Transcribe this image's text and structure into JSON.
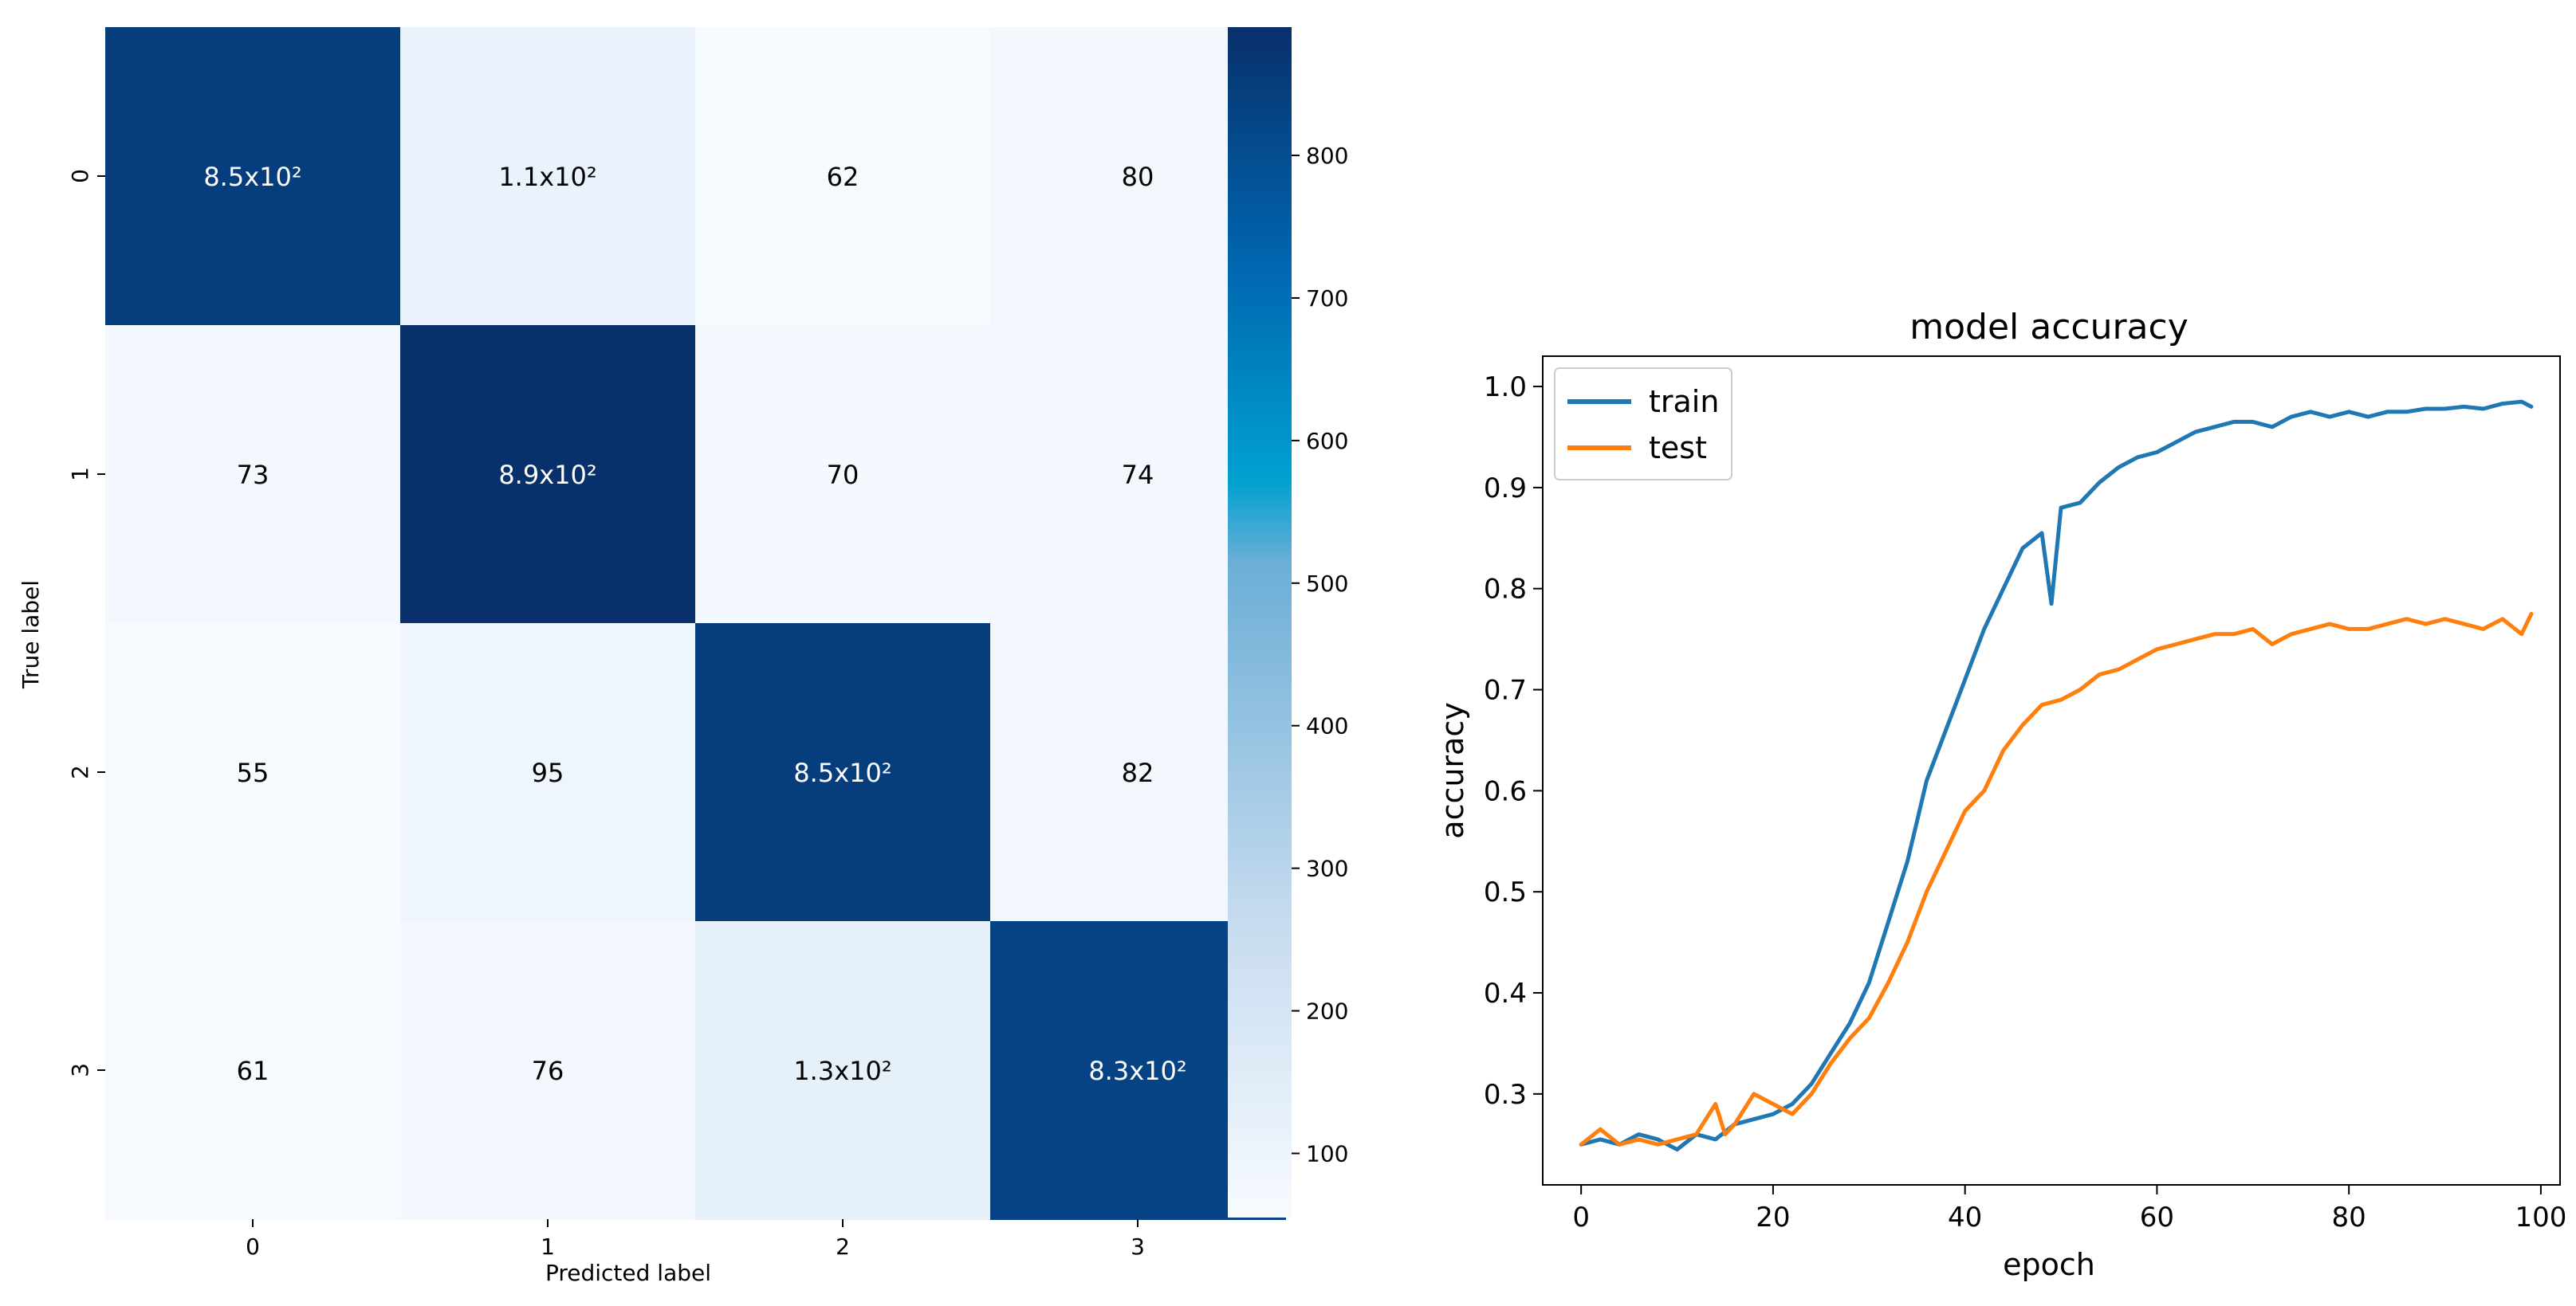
{
  "chart_data": [
    {
      "type": "heatmap",
      "xlabel": "Predicted label",
      "ylabel": "True label",
      "x_categories": [
        "0",
        "1",
        "2",
        "3"
      ],
      "y_categories": [
        "0",
        "1",
        "2",
        "3"
      ],
      "values": [
        [
          850,
          110,
          62,
          80
        ],
        [
          73,
          890,
          70,
          74
        ],
        [
          55,
          95,
          850,
          82
        ],
        [
          61,
          76,
          130,
          830
        ]
      ],
      "labels": [
        [
          "8.5x10²",
          "1.1x10²",
          "62",
          "80"
        ],
        [
          "73",
          "8.9x10²",
          "70",
          "74"
        ],
        [
          "55",
          "95",
          "8.5x10²",
          "82"
        ],
        [
          "61",
          "76",
          "1.3x10²",
          "8.3x10²"
        ]
      ],
      "colorbar": {
        "range": [
          55,
          890
        ],
        "ticks": [
          "100",
          "200",
          "300",
          "400",
          "500",
          "600",
          "700",
          "800"
        ],
        "tick_values": [
          100,
          200,
          300,
          400,
          500,
          600,
          700,
          800
        ],
        "colormap": "Blues"
      }
    },
    {
      "type": "line",
      "title": "model accuracy",
      "xlabel": "epoch",
      "ylabel": "accuracy",
      "xlim": [
        -4,
        102
      ],
      "ylim": [
        0.21,
        1.03
      ],
      "x_ticks": [
        "0",
        "20",
        "40",
        "60",
        "80",
        "100"
      ],
      "x_tick_values": [
        0,
        20,
        40,
        60,
        80,
        100
      ],
      "y_ticks": [
        "0.3",
        "0.4",
        "0.5",
        "0.6",
        "0.7",
        "0.8",
        "0.9",
        "1.0"
      ],
      "y_tick_values": [
        0.3,
        0.4,
        0.5,
        0.6,
        0.7,
        0.8,
        0.9,
        1.0
      ],
      "legend": "upper-left",
      "series": [
        {
          "name": "train",
          "color": "#1f77b4",
          "x": [
            0,
            2,
            4,
            6,
            8,
            10,
            12,
            14,
            16,
            18,
            20,
            22,
            24,
            26,
            28,
            30,
            32,
            34,
            35,
            36,
            38,
            40,
            42,
            44,
            46,
            48,
            49,
            50,
            52,
            54,
            56,
            58,
            60,
            62,
            64,
            66,
            68,
            70,
            72,
            74,
            76,
            78,
            80,
            82,
            84,
            86,
            88,
            90,
            92,
            94,
            96,
            98,
            99
          ],
          "y": [
            0.25,
            0.255,
            0.25,
            0.26,
            0.255,
            0.245,
            0.26,
            0.255,
            0.27,
            0.275,
            0.28,
            0.29,
            0.31,
            0.34,
            0.37,
            0.41,
            0.47,
            0.53,
            0.57,
            0.61,
            0.66,
            0.71,
            0.76,
            0.8,
            0.84,
            0.855,
            0.785,
            0.88,
            0.885,
            0.905,
            0.92,
            0.93,
            0.935,
            0.945,
            0.955,
            0.96,
            0.965,
            0.965,
            0.96,
            0.97,
            0.975,
            0.97,
            0.975,
            0.97,
            0.975,
            0.975,
            0.978,
            0.978,
            0.98,
            0.978,
            0.983,
            0.985,
            0.98
          ]
        },
        {
          "name": "test",
          "color": "#ff7f0e",
          "x": [
            0,
            2,
            4,
            6,
            8,
            10,
            12,
            14,
            15,
            16,
            18,
            20,
            22,
            24,
            26,
            28,
            30,
            32,
            34,
            36,
            38,
            40,
            42,
            44,
            46,
            48,
            50,
            52,
            54,
            56,
            58,
            60,
            62,
            64,
            66,
            68,
            70,
            72,
            74,
            76,
            78,
            80,
            82,
            84,
            86,
            88,
            90,
            92,
            94,
            96,
            98,
            99
          ],
          "y": [
            0.25,
            0.265,
            0.25,
            0.255,
            0.25,
            0.255,
            0.26,
            0.29,
            0.26,
            0.27,
            0.3,
            0.29,
            0.28,
            0.3,
            0.33,
            0.355,
            0.375,
            0.41,
            0.45,
            0.5,
            0.54,
            0.58,
            0.6,
            0.64,
            0.665,
            0.685,
            0.69,
            0.7,
            0.715,
            0.72,
            0.73,
            0.74,
            0.745,
            0.75,
            0.755,
            0.755,
            0.76,
            0.745,
            0.755,
            0.76,
            0.765,
            0.76,
            0.76,
            0.765,
            0.77,
            0.765,
            0.77,
            0.765,
            0.76,
            0.77,
            0.755,
            0.775
          ]
        }
      ]
    }
  ]
}
